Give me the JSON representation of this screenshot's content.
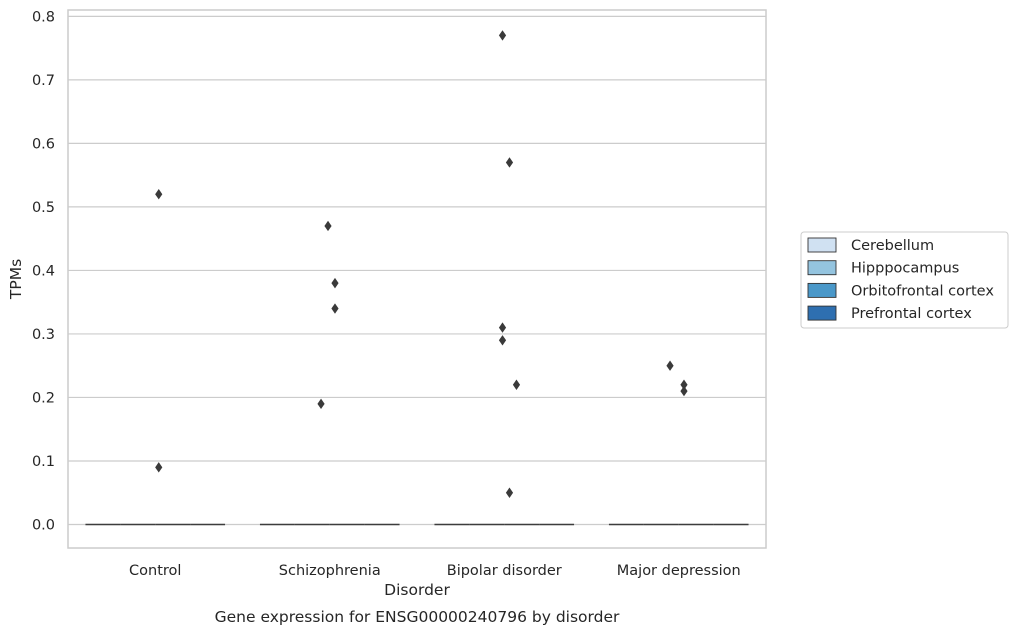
{
  "chart_data": {
    "type": "box",
    "xlabel": "Disorder",
    "ylabel": "TPMs",
    "caption": "Gene expression for ENSG00000240796 by disorder",
    "categories": [
      "Control",
      "Schizophrenia",
      "Bipolar disorder",
      "Major depression"
    ],
    "ylim": [
      -0.037,
      0.81
    ],
    "yticks": [
      0.0,
      0.1,
      0.2,
      0.3,
      0.4,
      0.5,
      0.6,
      0.7,
      0.8
    ],
    "ytick_labels": [
      "0.0",
      "0.1",
      "0.2",
      "0.3",
      "0.4",
      "0.5",
      "0.6",
      "0.7",
      "0.8"
    ],
    "grid": true,
    "legend_position": "center-right, outside plot",
    "series": [
      {
        "name": "Cerebellum",
        "color": "#d0e1f2"
      },
      {
        "name": "Hipppocampus",
        "color": "#94c4df"
      },
      {
        "name": "Orbitofrontal cortex",
        "color": "#4a98c9"
      },
      {
        "name": "Prefrontal cortex",
        "color": "#2e6fb0"
      }
    ],
    "box_median": 0.0,
    "outliers": [
      {
        "category": "Control",
        "value": 0.52,
        "offset": 0.2
      },
      {
        "category": "Control",
        "value": 0.09,
        "offset": 0.2
      },
      {
        "category": "Schizophrenia",
        "value": 0.47,
        "offset": -0.1
      },
      {
        "category": "Schizophrenia",
        "value": 0.38,
        "offset": 0.3
      },
      {
        "category": "Schizophrenia",
        "value": 0.34,
        "offset": 0.3
      },
      {
        "category": "Schizophrenia",
        "value": 0.19,
        "offset": -0.5
      },
      {
        "category": "Bipolar disorder",
        "value": 0.77,
        "offset": -0.1
      },
      {
        "category": "Bipolar disorder",
        "value": 0.57,
        "offset": 0.3
      },
      {
        "category": "Bipolar disorder",
        "value": 0.31,
        "offset": -0.1
      },
      {
        "category": "Bipolar disorder",
        "value": 0.29,
        "offset": -0.1
      },
      {
        "category": "Bipolar disorder",
        "value": 0.22,
        "offset": 0.7
      },
      {
        "category": "Bipolar disorder",
        "value": 0.05,
        "offset": 0.3
      },
      {
        "category": "Major depression",
        "value": 0.25,
        "offset": -0.5
      },
      {
        "category": "Major depression",
        "value": 0.22,
        "offset": 0.3
      },
      {
        "category": "Major depression",
        "value": 0.21,
        "offset": 0.3
      }
    ],
    "marker_color": "#3a3a3a"
  }
}
